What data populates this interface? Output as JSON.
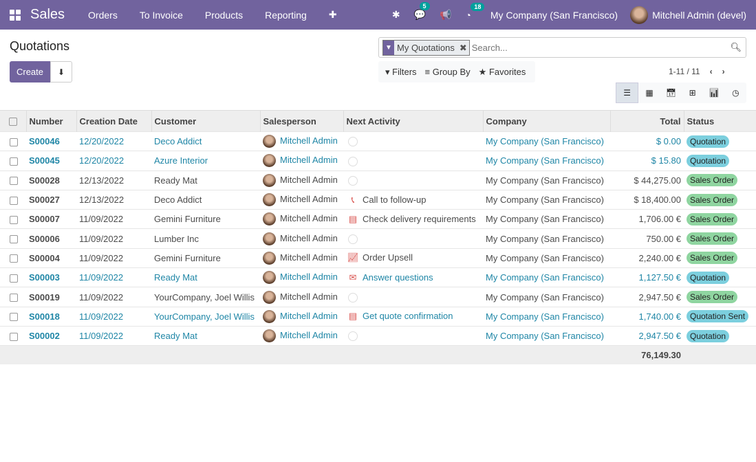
{
  "nav": {
    "app": "Sales",
    "menus": [
      "Orders",
      "To Invoice",
      "Products",
      "Reporting"
    ],
    "plus": "✚",
    "messages_count": "5",
    "activities_count": "18",
    "company": "My Company (San Francisco)",
    "user": "Mitchell Admin (devel)"
  },
  "page": {
    "title": "Quotations",
    "create": "Create"
  },
  "search": {
    "facet": "My Quotations",
    "placeholder": "Search..."
  },
  "filters": {
    "filters": "Filters",
    "group_by": "Group By",
    "favorites": "Favorites"
  },
  "pager": {
    "text": "1-11 / 11"
  },
  "columns": [
    "Number",
    "Creation Date",
    "Customer",
    "Salesperson",
    "Next Activity",
    "Company",
    "Total",
    "Status"
  ],
  "rows": [
    {
      "number": "S00046",
      "date": "12/20/2022",
      "customer": "Deco Addict",
      "salesperson": "Mitchell Admin",
      "activity": "",
      "activity_icon": "clock",
      "company": "My Company (San Francisco)",
      "total": "$ 0.00",
      "status": "Quotation",
      "kind": "quotation"
    },
    {
      "number": "S00045",
      "date": "12/20/2022",
      "customer": "Azure Interior",
      "salesperson": "Mitchell Admin",
      "activity": "",
      "activity_icon": "clock",
      "company": "My Company (San Francisco)",
      "total": "$ 15.80",
      "status": "Quotation",
      "kind": "quotation"
    },
    {
      "number": "S00028",
      "date": "12/13/2022",
      "customer": "Ready Mat",
      "salesperson": "Mitchell Admin",
      "activity": "",
      "activity_icon": "clock",
      "company": "My Company (San Francisco)",
      "total": "$ 44,275.00",
      "status": "Sales Order",
      "kind": "sale"
    },
    {
      "number": "S00027",
      "date": "12/13/2022",
      "customer": "Deco Addict",
      "salesperson": "Mitchell Admin",
      "activity": "Call to follow-up",
      "activity_icon": "phone",
      "company": "My Company (San Francisco)",
      "total": "$ 18,400.00",
      "status": "Sales Order",
      "kind": "sale"
    },
    {
      "number": "S00007",
      "date": "11/09/2022",
      "customer": "Gemini Furniture",
      "salesperson": "Mitchell Admin",
      "activity": "Check delivery requirements",
      "activity_icon": "tasks",
      "company": "My Company (San Francisco)",
      "total": "1,706.00 €",
      "status": "Sales Order",
      "kind": "sale"
    },
    {
      "number": "S00006",
      "date": "11/09/2022",
      "customer": "Lumber Inc",
      "salesperson": "Mitchell Admin",
      "activity": "",
      "activity_icon": "clock",
      "company": "My Company (San Francisco)",
      "total": "750.00 €",
      "status": "Sales Order",
      "kind": "sale"
    },
    {
      "number": "S00004",
      "date": "11/09/2022",
      "customer": "Gemini Furniture",
      "salesperson": "Mitchell Admin",
      "activity": "Order Upsell",
      "activity_icon": "line-chart",
      "company": "My Company (San Francisco)",
      "total": "2,240.00 €",
      "status": "Sales Order",
      "kind": "sale"
    },
    {
      "number": "S00003",
      "date": "11/09/2022",
      "customer": "Ready Mat",
      "salesperson": "Mitchell Admin",
      "activity": "Answer questions",
      "activity_icon": "envelope",
      "company": "My Company (San Francisco)",
      "total": "1,127.50 €",
      "status": "Quotation",
      "kind": "quotation"
    },
    {
      "number": "S00019",
      "date": "11/09/2022",
      "customer": "YourCompany, Joel Willis",
      "salesperson": "Mitchell Admin",
      "activity": "",
      "activity_icon": "clock",
      "company": "My Company (San Francisco)",
      "total": "2,947.50 €",
      "status": "Sales Order",
      "kind": "sale"
    },
    {
      "number": "S00018",
      "date": "11/09/2022",
      "customer": "YourCompany, Joel Willis",
      "salesperson": "Mitchell Admin",
      "activity": "Get quote confirmation",
      "activity_icon": "tasks",
      "company": "My Company (San Francisco)",
      "total": "1,740.00 €",
      "status": "Quotation Sent",
      "kind": "quotation"
    },
    {
      "number": "S00002",
      "date": "11/09/2022",
      "customer": "Ready Mat",
      "salesperson": "Mitchell Admin",
      "activity": "",
      "activity_icon": "clock",
      "company": "My Company (San Francisco)",
      "total": "2,947.50 €",
      "status": "Quotation",
      "kind": "quotation"
    }
  ],
  "footer": {
    "total": "76,149.30"
  },
  "colors": {
    "brand": "#71639e",
    "link": "#1f86a6",
    "quotation_badge": "#7ccfde",
    "sales_order_badge": "#8fd5a0",
    "activity_red": "#d9534f"
  }
}
